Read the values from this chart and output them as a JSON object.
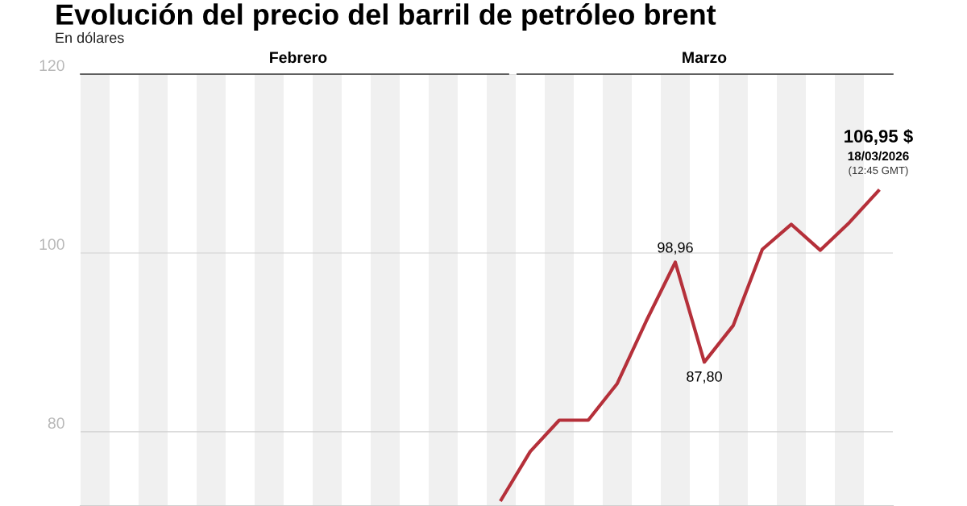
{
  "chart_data": {
    "type": "line",
    "title": "Evolución del precio del barril de petróleo brent",
    "subtitle": "En dólares",
    "categories": [
      null,
      null,
      null,
      null,
      null,
      null,
      null,
      null,
      null,
      null,
      null,
      null,
      null,
      null,
      null,
      null,
      null,
      null,
      null,
      null,
      null,
      null,
      null,
      null,
      null,
      null,
      null,
      null
    ],
    "series": [
      {
        "color": "#b5303a",
        "values": [
          null,
          null,
          null,
          null,
          null,
          null,
          null,
          null,
          null,
          null,
          null,
          null,
          null,
          null,
          72.4,
          77.8,
          81.3,
          81.3,
          85.4,
          92.4,
          98.96,
          87.8,
          91.9,
          100.4,
          103.2,
          100.3,
          103.4,
          106.95
        ],
        "value_labels": [
          null,
          null,
          null,
          null,
          null,
          null,
          null,
          null,
          null,
          null,
          null,
          null,
          null,
          null,
          null,
          null,
          null,
          null,
          null,
          null,
          "98,96",
          "87,80",
          null,
          null,
          null,
          null,
          null,
          "106,95 $"
        ]
      }
    ],
    "annotations": [
      "Febrero",
      "Marzo",
      "18/03/2026",
      "(12:45 GMT)"
    ],
    "ylim": [
      71.7,
      120
    ],
    "yticks": [
      80,
      100,
      120
    ],
    "grid": "y",
    "tick_labels": "y",
    "legend": false,
    "marker": "none",
    "line_style": "solid"
  }
}
